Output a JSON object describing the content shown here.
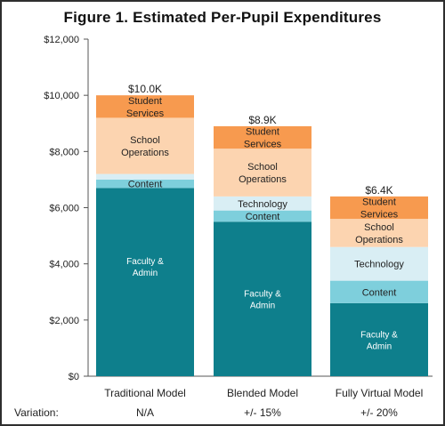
{
  "chart_data": {
    "type": "bar",
    "stacked": true,
    "title": "Figure 1. Estimated Per-Pupil Expenditures",
    "categories": [
      "Traditional Model",
      "Blended Model",
      "Fully Virtual Model"
    ],
    "ylim": [
      0,
      12000
    ],
    "yticks": [
      "$0",
      "$2,000",
      "$4,000",
      "$6,000",
      "$8,000",
      "$10,000",
      "$12,000"
    ],
    "ytick_values": [
      0,
      2000,
      4000,
      6000,
      8000,
      10000,
      12000
    ],
    "series": [
      {
        "name": "Faculty & Admin",
        "color": "#0e7f8c",
        "values": [
          6700,
          5500,
          2600
        ]
      },
      {
        "name": "Content",
        "color": "#7ecfdc",
        "values": [
          300,
          400,
          800
        ]
      },
      {
        "name": "Technology",
        "color": "#d9eef4",
        "values": [
          200,
          500,
          1200
        ]
      },
      {
        "name": "School Operations",
        "color": "#fcd4b0",
        "values": [
          2000,
          1700,
          1000
        ]
      },
      {
        "name": "Student Services",
        "color": "#f79a4f",
        "values": [
          800,
          800,
          800
        ]
      }
    ],
    "totals": [
      "$10.0K",
      "$8.9K",
      "$6.4K"
    ],
    "variation_label": "Variation:",
    "variations": [
      "N/A",
      "+/- 15%",
      "+/- 20%"
    ],
    "grid": false
  }
}
